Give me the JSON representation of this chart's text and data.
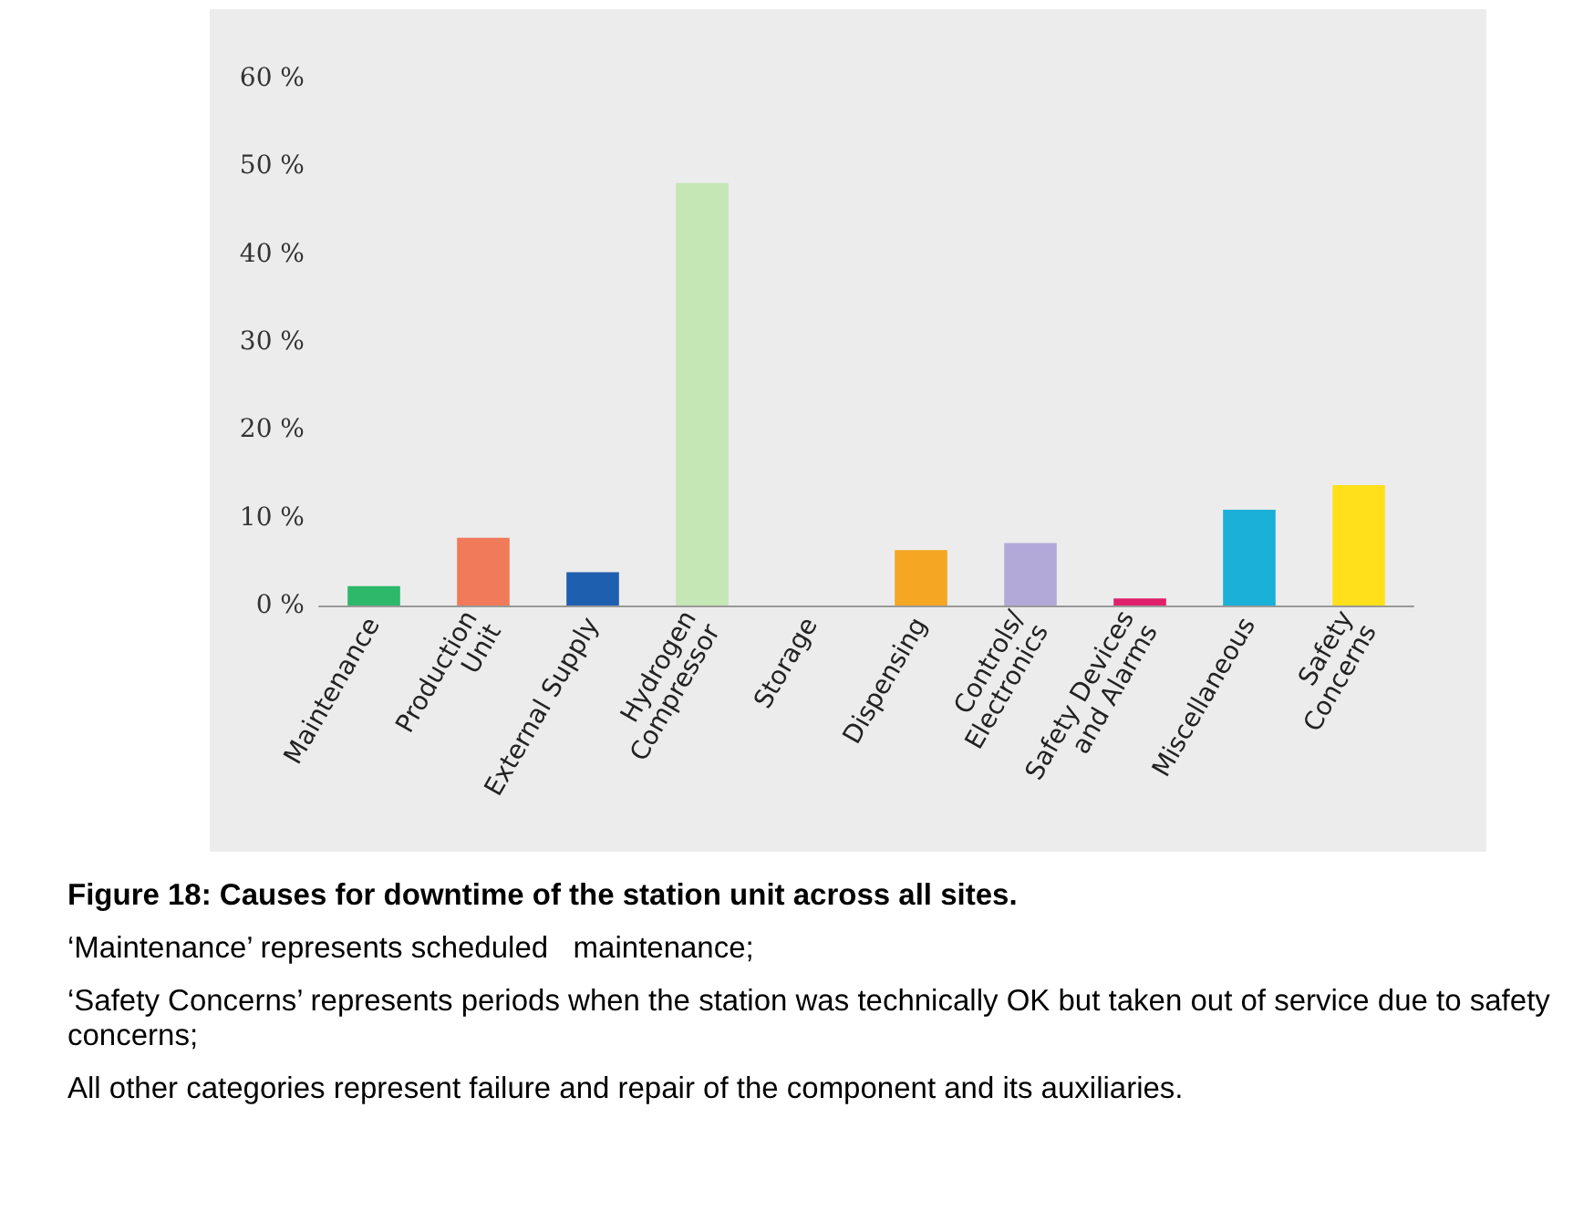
{
  "chart_data": {
    "type": "bar",
    "categories": [
      "Maintenance",
      "Production\nUnit",
      "External Supply",
      "Hydrogen\nCompressor",
      "Storage",
      "Dispensing",
      "Controls/\nElectronics",
      "Safety Devices\nand Alarms",
      "Miscellaneous",
      "Safety\nConcerns"
    ],
    "values": [
      2.2,
      7.7,
      3.8,
      48.1,
      0,
      6.3,
      7.1,
      0.8,
      10.9,
      13.7
    ],
    "colors": [
      "#2db86a",
      "#f07a5a",
      "#1f5fb0",
      "#c5e6b5",
      "#999999",
      "#f5a623",
      "#b3a9d9",
      "#e0206a",
      "#1ab0d8",
      "#ffe01a"
    ],
    "ylim": [
      0,
      60
    ],
    "yticks": [
      {
        "value": 0,
        "label": "0 %"
      },
      {
        "value": 10,
        "label": "10 %"
      },
      {
        "value": 20,
        "label": "20 %"
      },
      {
        "value": 30,
        "label": "30 %"
      },
      {
        "value": 40,
        "label": "40 %"
      },
      {
        "value": 50,
        "label": "50 %"
      },
      {
        "value": 60,
        "label": "60 %"
      }
    ],
    "grid": false,
    "annotations": [
      "Figure 18: Causes for downtime of the station unit across all sites.",
      "‘Maintenance’ represents scheduled   maintenance;",
      "‘Safety Concerns’ represents periods when the station was technically OK but taken out of service due to safety concerns;",
      "All other categories represent failure and repair of the component and its auxiliaries."
    ]
  }
}
